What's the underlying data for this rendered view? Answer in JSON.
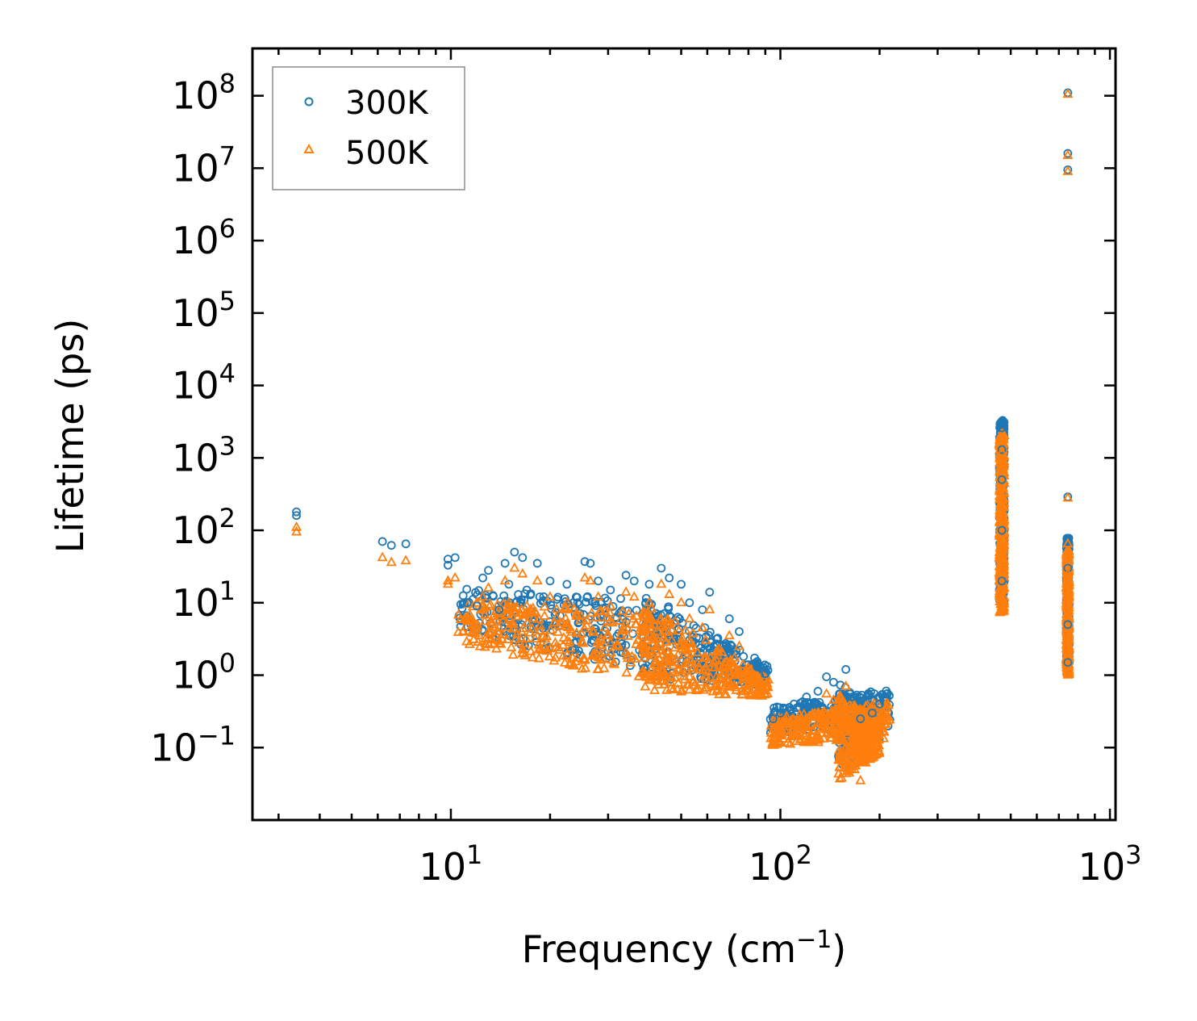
{
  "chart_data": {
    "type": "scatter",
    "title": "",
    "xlabel": {
      "main": "Frequency (cm",
      "sup": "−1",
      "close": ")"
    },
    "ylabel": "Lifetime (ps)",
    "xscale": "log",
    "yscale": "log",
    "xlim": [
      2.5,
      1040
    ],
    "ylim": [
      0.01,
      450000000
    ],
    "x_ticks": [
      {
        "value": 10,
        "base": "10",
        "exp": "1"
      },
      {
        "value": 100,
        "base": "10",
        "exp": "2"
      },
      {
        "value": 1000,
        "base": "10",
        "exp": "3"
      }
    ],
    "y_ticks": [
      {
        "value": 0.1,
        "base": "10",
        "exp": "−1"
      },
      {
        "value": 1,
        "base": "10",
        "exp": "0"
      },
      {
        "value": 10,
        "base": "10",
        "exp": "1"
      },
      {
        "value": 100,
        "base": "10",
        "exp": "2"
      },
      {
        "value": 1000,
        "base": "10",
        "exp": "3"
      },
      {
        "value": 10000,
        "base": "10",
        "exp": "4"
      },
      {
        "value": 100000,
        "base": "10",
        "exp": "5"
      },
      {
        "value": 1000000,
        "base": "10",
        "exp": "6"
      },
      {
        "value": 10000000,
        "base": "10",
        "exp": "7"
      },
      {
        "value": 100000000,
        "base": "10",
        "exp": "8"
      }
    ],
    "legend_position": "top-left",
    "series": [
      {
        "name": "300K",
        "marker": "circle",
        "color": "#1f77b4",
        "points": [
          [
            3.4,
            180
          ],
          [
            3.4,
            160
          ],
          [
            6.2,
            70
          ],
          [
            6.6,
            62
          ],
          [
            7.3,
            65
          ],
          [
            9.8,
            40
          ],
          [
            10.3,
            42
          ],
          [
            9.8,
            33
          ],
          [
            11.2,
            10
          ],
          [
            12.0,
            9
          ],
          [
            12.5,
            22
          ],
          [
            13.0,
            28
          ],
          [
            14.0,
            8
          ],
          [
            14.6,
            35
          ],
          [
            15.6,
            50
          ],
          [
            16.5,
            42
          ],
          [
            18.3,
            35
          ],
          [
            15.0,
            18
          ],
          [
            17.0,
            15
          ],
          [
            20.0,
            20
          ],
          [
            22.5,
            18
          ],
          [
            24.0,
            12
          ],
          [
            25.5,
            37
          ],
          [
            26.5,
            35
          ],
          [
            28.0,
            20
          ],
          [
            30.5,
            15
          ],
          [
            34.0,
            24
          ],
          [
            36.0,
            20
          ],
          [
            40.0,
            18
          ],
          [
            43.5,
            30
          ],
          [
            46.0,
            22
          ],
          [
            50.0,
            18
          ],
          [
            53.0,
            10
          ],
          [
            58.0,
            8
          ],
          [
            61.0,
            14
          ],
          [
            70.0,
            6
          ],
          [
            75.0,
            4
          ],
          [
            85.0,
            1.3
          ],
          [
            90.0,
            1.05
          ],
          [
            95,
            0.25
          ],
          [
            100,
            0.3
          ],
          [
            110,
            0.4
          ],
          [
            120,
            0.5
          ],
          [
            130,
            0.6
          ],
          [
            138,
            0.95
          ],
          [
            145,
            0.8
          ],
          [
            158,
            1.2
          ],
          [
            165,
            0.5
          ],
          [
            175,
            0.25
          ],
          [
            190,
            0.3
          ],
          [
            200,
            0.4
          ],
          [
            210,
            0.55
          ],
          [
            470,
            2600
          ],
          [
            470,
            1300
          ],
          [
            470,
            500
          ],
          [
            470,
            100
          ],
          [
            470,
            20
          ],
          [
            745,
            290
          ],
          [
            745,
            70
          ],
          [
            745,
            30
          ],
          [
            745,
            5
          ],
          [
            745,
            1.5
          ],
          [
            745,
            110000000
          ],
          [
            745,
            16000000
          ],
          [
            745,
            9500000
          ]
        ]
      },
      {
        "name": "500K",
        "marker": "triangle",
        "color": "#ff7f0e",
        "points": [
          [
            3.4,
            110
          ],
          [
            3.4,
            95
          ],
          [
            6.2,
            42
          ],
          [
            6.6,
            36
          ],
          [
            7.3,
            38
          ],
          [
            9.8,
            20
          ],
          [
            10.3,
            22
          ],
          [
            9.8,
            18
          ],
          [
            11.2,
            5.5
          ],
          [
            12.0,
            5
          ],
          [
            12.5,
            12
          ],
          [
            13.0,
            16
          ],
          [
            14.0,
            4.5
          ],
          [
            14.6,
            20
          ],
          [
            15.6,
            30
          ],
          [
            16.5,
            25
          ],
          [
            18.3,
            20
          ],
          [
            15.0,
            10
          ],
          [
            17.0,
            9
          ],
          [
            20.0,
            12
          ],
          [
            22.5,
            10
          ],
          [
            24.0,
            7
          ],
          [
            25.5,
            22
          ],
          [
            26.5,
            20
          ],
          [
            28.0,
            12
          ],
          [
            30.5,
            9
          ],
          [
            34.0,
            14
          ],
          [
            36.0,
            12
          ],
          [
            40.0,
            10
          ],
          [
            43.5,
            18
          ],
          [
            46.0,
            13
          ],
          [
            50.0,
            10
          ],
          [
            53.0,
            6
          ],
          [
            58.0,
            4.5
          ],
          [
            61.0,
            8
          ],
          [
            70.0,
            3.5
          ],
          [
            75.0,
            2.5
          ],
          [
            85.0,
            0.8
          ],
          [
            90.0,
            0.7
          ],
          [
            95,
            0.12
          ],
          [
            100,
            0.15
          ],
          [
            110,
            0.2
          ],
          [
            120,
            0.25
          ],
          [
            130,
            0.3
          ],
          [
            138,
            0.55
          ],
          [
            145,
            0.45
          ],
          [
            158,
            0.7
          ],
          [
            165,
            0.25
          ],
          [
            175,
            0.035
          ],
          [
            190,
            0.15
          ],
          [
            200,
            0.22
          ],
          [
            210,
            0.35
          ],
          [
            470,
            1200
          ],
          [
            470,
            800
          ],
          [
            470,
            300
          ],
          [
            470,
            60
          ],
          [
            470,
            8
          ],
          [
            745,
            280
          ],
          [
            745,
            65
          ],
          [
            745,
            25
          ],
          [
            745,
            3
          ],
          [
            745,
            1.1
          ],
          [
            745,
            105000000
          ],
          [
            745,
            15000000
          ],
          [
            745,
            9000000
          ]
        ]
      }
    ],
    "bands": [
      {
        "xmin": 10.5,
        "xmax": 44,
        "ylo_start": 3,
        "ylo_end": 0.8,
        "yhi_start": 12,
        "yhi_end": 8
      },
      {
        "xmin": 38,
        "xmax": 92,
        "ylo_start": 0.7,
        "ylo_end": 0.55,
        "yhi_start": 12,
        "yhi_end": 1.0
      },
      {
        "xmin": 93,
        "xmax": 215,
        "ylo_start": 0.12,
        "ylo_end": 0.15,
        "yhi_start": 0.28,
        "yhi_end": 0.5
      },
      {
        "xmin": 150,
        "xmax": 200,
        "ylo_start": 0.04,
        "ylo_end": 0.09,
        "yhi_start": 0.6,
        "yhi_end": 0.25
      },
      {
        "xmin": 462,
        "xmax": 478,
        "ylo_start": 8,
        "ylo_end": 8,
        "yhi_start": 2500,
        "yhi_end": 2500
      },
      {
        "xmin": 738,
        "xmax": 752,
        "ylo_start": 1.1,
        "ylo_end": 1.1,
        "yhi_start": 60,
        "yhi_end": 60
      }
    ]
  }
}
